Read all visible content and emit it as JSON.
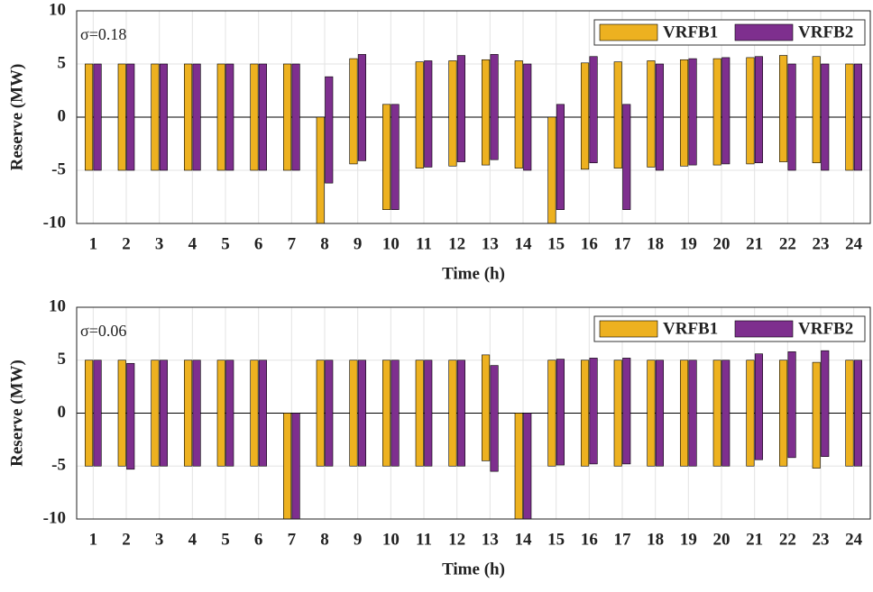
{
  "chart_data": [
    {
      "type": "range_bar",
      "annotation": "σ=0.18",
      "xlabel": "Time (h)",
      "ylabel": "Reserve (MW)",
      "categories": [
        1,
        2,
        3,
        4,
        5,
        6,
        7,
        8,
        9,
        10,
        11,
        12,
        13,
        14,
        15,
        16,
        17,
        18,
        19,
        20,
        21,
        22,
        23,
        24
      ],
      "ylim": [
        -10,
        10
      ],
      "yticks": [
        -10,
        -5,
        0,
        5,
        10
      ],
      "grid": true,
      "legend": "top-right",
      "series": [
        {
          "name": "VRFB1",
          "color": "#edb120",
          "high": [
            5,
            5,
            5,
            5,
            5,
            5,
            5,
            0,
            5.5,
            1.2,
            5.2,
            5.3,
            5.4,
            5.3,
            0,
            5.1,
            5.2,
            5.3,
            5.4,
            5.5,
            5.6,
            5.8,
            5.7,
            5
          ],
          "low": [
            -5,
            -5,
            -5,
            -5,
            -5,
            -5,
            -5,
            -10,
            -4.4,
            -8.7,
            -4.8,
            -4.6,
            -4.5,
            -4.8,
            -10,
            -4.9,
            -4.8,
            -4.7,
            -4.6,
            -4.5,
            -4.4,
            -4.2,
            -4.3,
            -5
          ]
        },
        {
          "name": "VRFB2",
          "color": "#7e2f8e",
          "high": [
            5,
            5,
            5,
            5,
            5,
            5,
            5,
            3.8,
            5.9,
            1.2,
            5.3,
            5.8,
            5.9,
            5,
            1.2,
            5.7,
            1.2,
            5,
            5.5,
            5.6,
            5.7,
            5,
            5,
            5
          ],
          "low": [
            -5,
            -5,
            -5,
            -5,
            -5,
            -5,
            -5,
            -6.2,
            -4.1,
            -8.7,
            -4.7,
            -4.2,
            -4.0,
            -5,
            -8.7,
            -4.3,
            -8.7,
            -5,
            -4.5,
            -4.4,
            -4.3,
            -5,
            -5,
            -5
          ]
        }
      ]
    },
    {
      "type": "range_bar",
      "annotation": "σ=0.06",
      "xlabel": "Time (h)",
      "ylabel": "Reserve (MW)",
      "categories": [
        1,
        2,
        3,
        4,
        5,
        6,
        7,
        8,
        9,
        10,
        11,
        12,
        13,
        14,
        15,
        16,
        17,
        18,
        19,
        20,
        21,
        22,
        23,
        24
      ],
      "ylim": [
        -10,
        10
      ],
      "yticks": [
        -10,
        -5,
        0,
        5,
        10
      ],
      "grid": true,
      "legend": "top-right",
      "series": [
        {
          "name": "VRFB1",
          "color": "#edb120",
          "high": [
            5,
            5,
            5,
            5,
            5,
            5,
            0,
            5,
            5,
            5,
            5,
            5,
            5.5,
            0,
            5,
            5,
            5,
            5,
            5,
            5,
            5,
            5,
            4.8,
            5
          ],
          "low": [
            -5,
            -5,
            -5,
            -5,
            -5,
            -5,
            -10,
            -5,
            -5,
            -5,
            -5,
            -5,
            -4.5,
            -10,
            -5,
            -5,
            -5,
            -5,
            -5,
            -5,
            -5,
            -5,
            -5.2,
            -5
          ]
        },
        {
          "name": "VRFB2",
          "color": "#7e2f8e",
          "high": [
            5,
            4.7,
            5,
            5,
            5,
            5,
            0,
            5,
            5,
            5,
            5,
            5,
            4.5,
            0,
            5.1,
            5.2,
            5.2,
            5,
            5,
            5,
            5.6,
            5.8,
            5.9,
            5
          ],
          "low": [
            -5,
            -5.3,
            -5,
            -5,
            -5,
            -5,
            -10,
            -5,
            -5,
            -5,
            -5,
            -5,
            -5.5,
            -10,
            -4.9,
            -4.8,
            -4.8,
            -5,
            -5,
            -5,
            -4.4,
            -4.2,
            -4.1,
            -5
          ]
        }
      ]
    }
  ]
}
